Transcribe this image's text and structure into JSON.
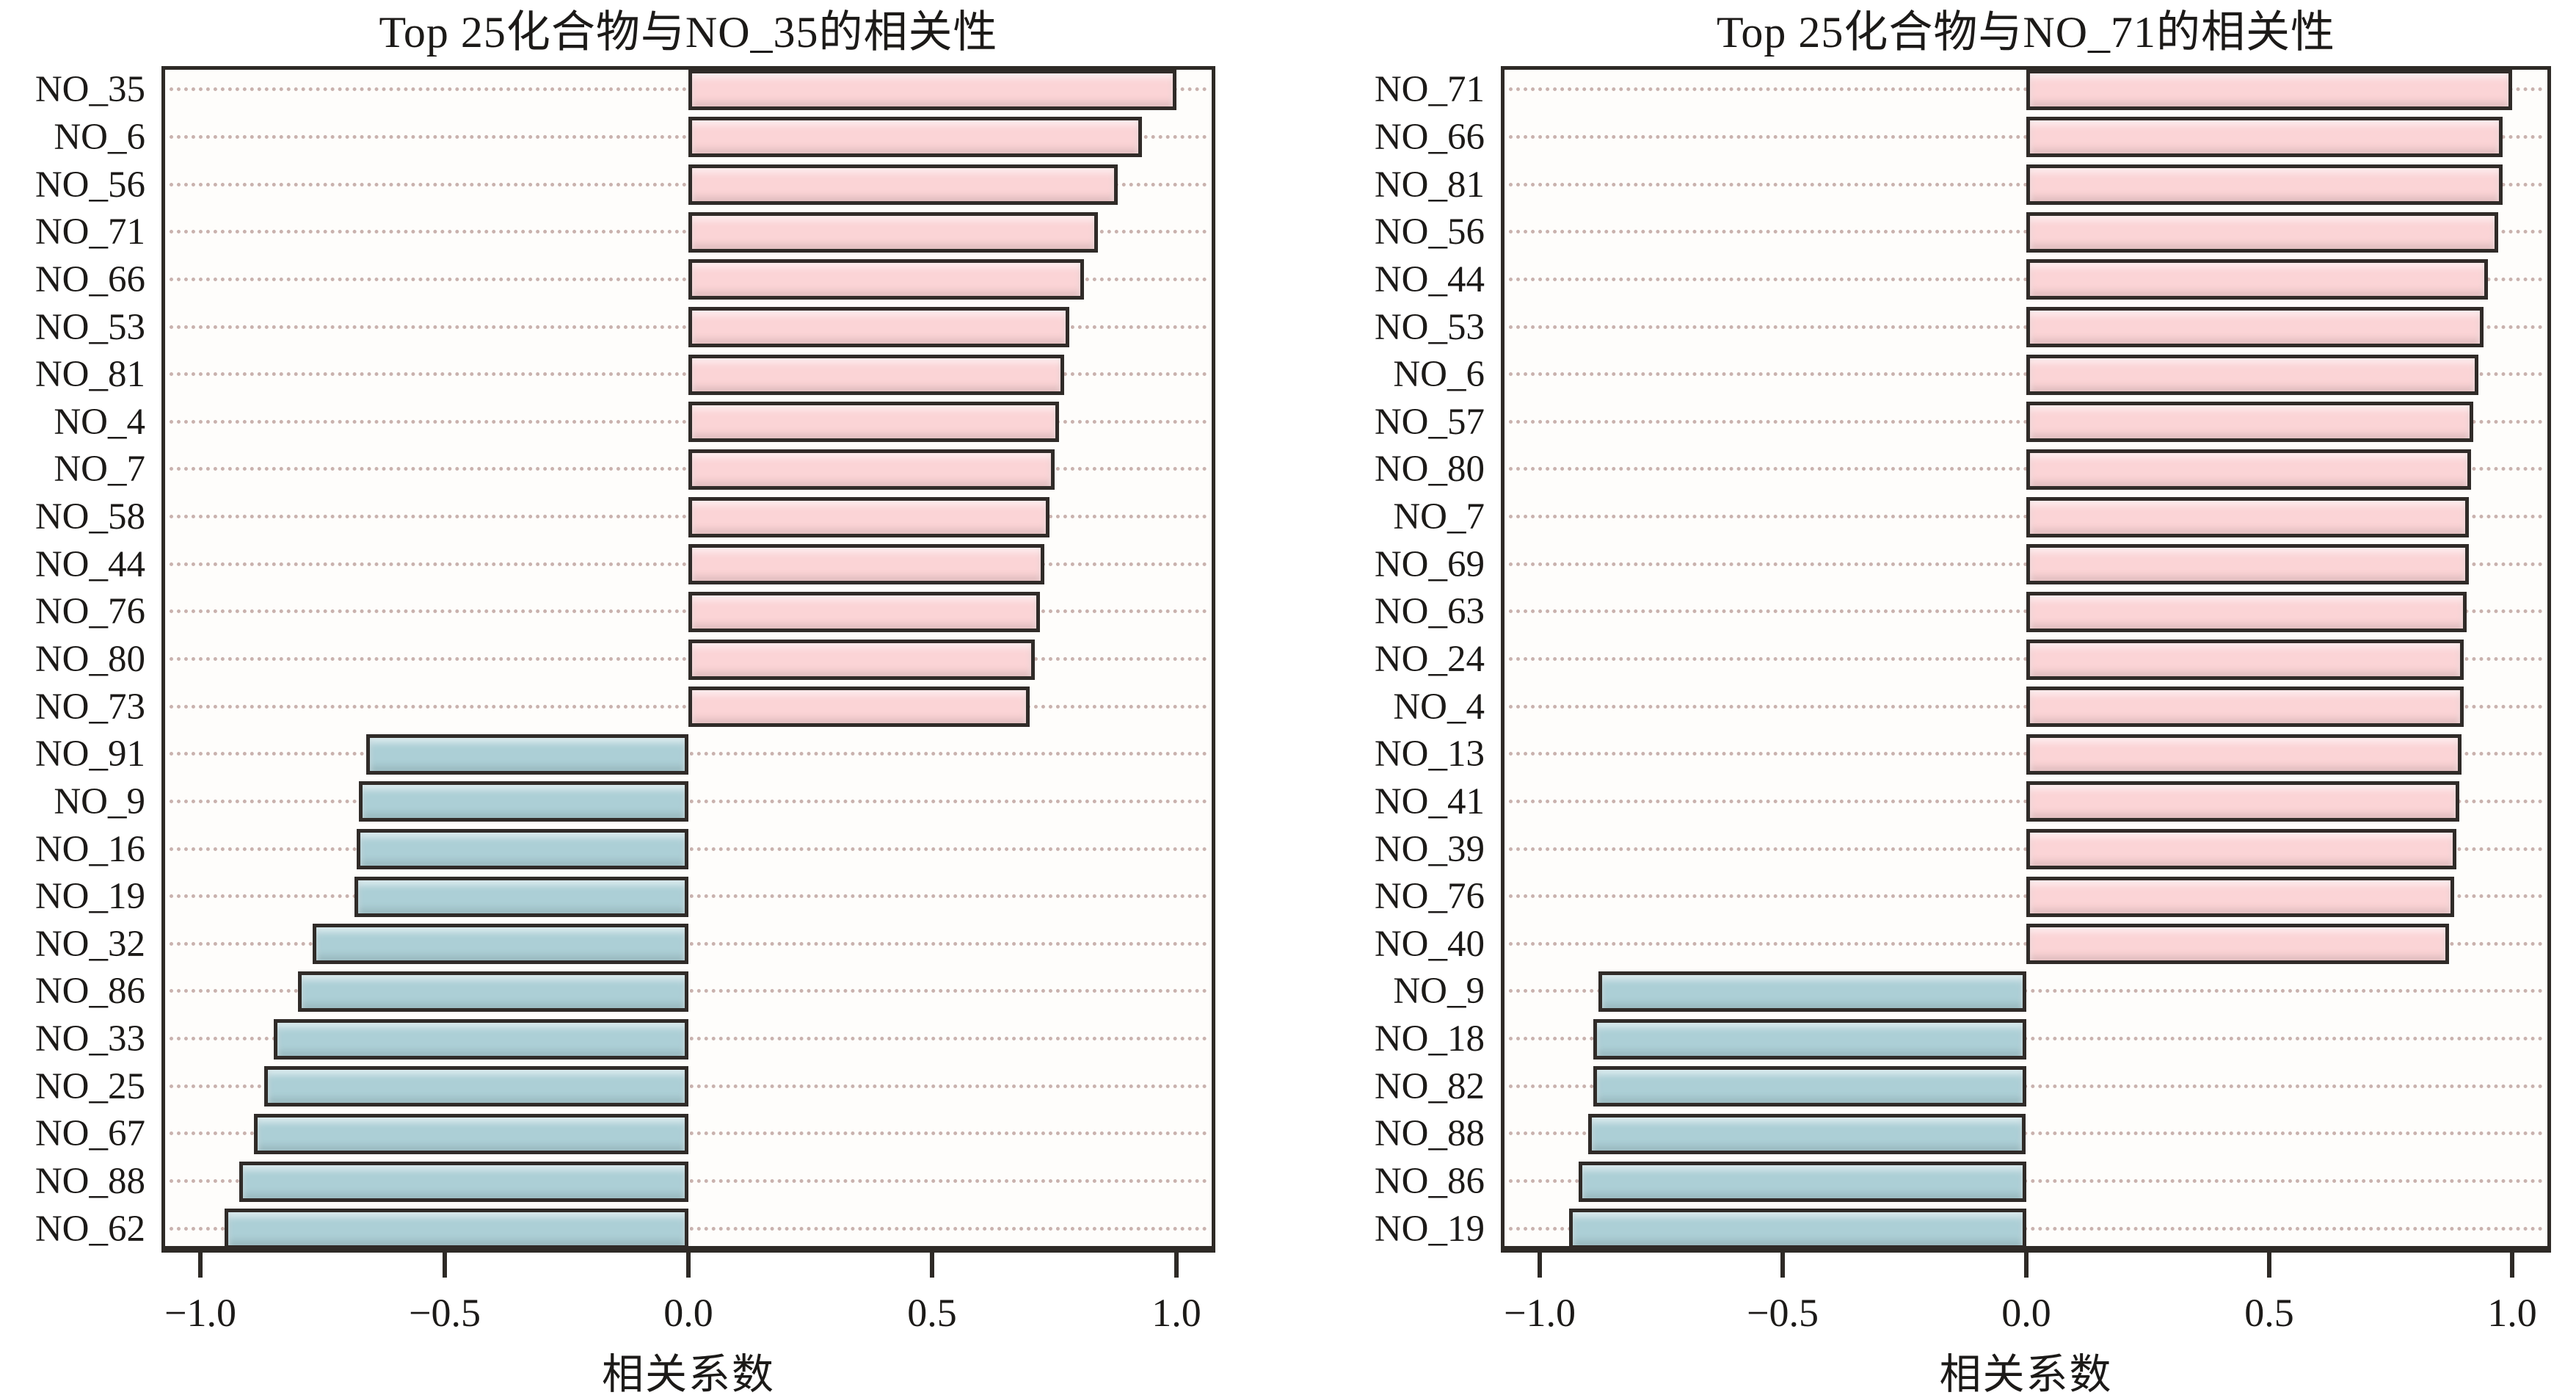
{
  "colors": {
    "positive_bar": "#fbd4d6",
    "negative_bar": "#accfd6",
    "bar_border": "#302b28",
    "grid_dot": "#c9b2ae",
    "axis": "#2e2a26",
    "plot_background": "#fefdfb",
    "page_background": "#ffffff",
    "text": "#1c1a18"
  },
  "chart_data": [
    {
      "type": "bar",
      "orientation": "horizontal",
      "title": "Top 25化合物与NO_35的相关性",
      "xlabel": "相关系数",
      "xlim": [
        -1.08,
        1.08
      ],
      "grid": true,
      "x_ticks": [
        {
          "value": -1.0,
          "label": "−1.0"
        },
        {
          "value": -0.5,
          "label": "−0.5"
        },
        {
          "value": 0.0,
          "label": "0.0"
        },
        {
          "value": 0.5,
          "label": "0.5"
        },
        {
          "value": 1.0,
          "label": "1.0"
        }
      ],
      "categories": [
        "NO_35",
        "NO_6",
        "NO_56",
        "NO_71",
        "NO_66",
        "NO_53",
        "NO_81",
        "NO_4",
        "NO_7",
        "NO_58",
        "NO_44",
        "NO_76",
        "NO_80",
        "NO_73",
        "NO_91",
        "NO_9",
        "NO_16",
        "NO_19",
        "NO_32",
        "NO_86",
        "NO_33",
        "NO_25",
        "NO_67",
        "NO_88",
        "NO_62"
      ],
      "values": [
        1.0,
        0.93,
        0.88,
        0.84,
        0.81,
        0.78,
        0.77,
        0.76,
        0.75,
        0.74,
        0.73,
        0.72,
        0.71,
        0.7,
        -0.66,
        -0.675,
        -0.68,
        -0.685,
        -0.77,
        -0.8,
        -0.85,
        -0.87,
        -0.89,
        -0.92,
        -0.95
      ]
    },
    {
      "type": "bar",
      "orientation": "horizontal",
      "title": "Top 25化合物与NO_71的相关性",
      "xlabel": "相关系数",
      "xlim": [
        -1.08,
        1.08
      ],
      "grid": true,
      "x_ticks": [
        {
          "value": -1.0,
          "label": "−1.0"
        },
        {
          "value": -0.5,
          "label": "−0.5"
        },
        {
          "value": 0.0,
          "label": "0.0"
        },
        {
          "value": 0.5,
          "label": "0.5"
        },
        {
          "value": 1.0,
          "label": "1.0"
        }
      ],
      "categories": [
        "NO_71",
        "NO_66",
        "NO_81",
        "NO_56",
        "NO_44",
        "NO_53",
        "NO_6",
        "NO_57",
        "NO_80",
        "NO_7",
        "NO_69",
        "NO_63",
        "NO_24",
        "NO_4",
        "NO_13",
        "NO_41",
        "NO_39",
        "NO_76",
        "NO_40",
        "NO_9",
        "NO_18",
        "NO_82",
        "NO_88",
        "NO_86",
        "NO_19"
      ],
      "values": [
        1.0,
        0.98,
        0.98,
        0.97,
        0.95,
        0.94,
        0.93,
        0.92,
        0.915,
        0.91,
        0.91,
        0.905,
        0.9,
        0.9,
        0.895,
        0.89,
        0.885,
        0.88,
        0.87,
        -0.88,
        -0.89,
        -0.89,
        -0.9,
        -0.92,
        -0.94
      ]
    }
  ]
}
